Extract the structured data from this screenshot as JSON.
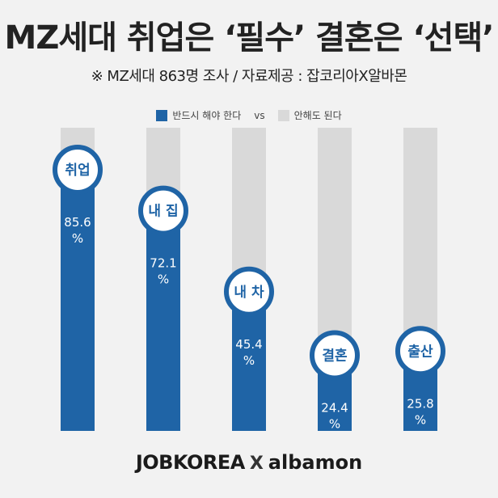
{
  "title": "MZ세대 취업은 ‘필수’ 결혼은 ‘선택’",
  "subtitle": "※ MZ세대 863명 조사 / 자료제공 : 잡코리아X알바몬",
  "legend": {
    "must": "반드시 해야 한다",
    "vs": "vs",
    "optional": "안해도 된다"
  },
  "colors": {
    "must": "#1f64a6",
    "optional": "#d9d9d9",
    "background": "#f2f2f2"
  },
  "chart_data": {
    "type": "bar",
    "categories": [
      "취업",
      "내 집",
      "내 차",
      "결혼",
      "출산"
    ],
    "series": [
      {
        "name": "반드시 해야 한다",
        "values": [
          85.6,
          72.1,
          45.4,
          24.4,
          25.8
        ]
      }
    ],
    "value_labels": [
      "85.6 %",
      "72.1 %",
      "45.4 %",
      "24.4 %",
      "25.8 %"
    ],
    "ylim": [
      0,
      100
    ]
  },
  "footer": {
    "left_logo": "JOBKOREA",
    "separator": "X",
    "right_logo": "albamon"
  }
}
